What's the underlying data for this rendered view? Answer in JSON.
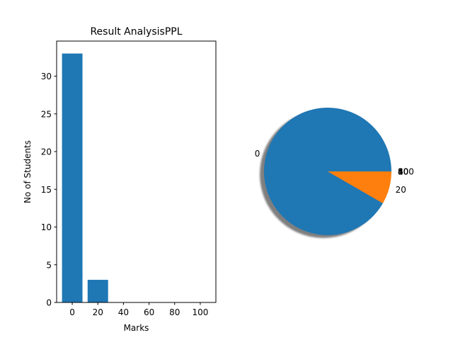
{
  "chart_data": [
    {
      "type": "bar",
      "title": "Result AnalysisPPL",
      "xlabel": "Marks",
      "ylabel": "No of Students",
      "categories": [
        0,
        20,
        40,
        60,
        80,
        100
      ],
      "values": [
        33,
        3,
        0,
        0,
        0,
        0
      ],
      "x_ticks": [
        "0",
        "20",
        "40",
        "60",
        "80",
        "100"
      ],
      "y_ticks": [
        "0",
        "5",
        "10",
        "15",
        "20",
        "25",
        "30"
      ],
      "ylim": [
        0,
        34.65
      ],
      "xlim": [
        -12.2,
        112.2
      ],
      "grid": false,
      "colors": {
        "bar": "#1f77b4"
      }
    },
    {
      "type": "pie",
      "labels": [
        "0",
        "20",
        "40",
        "60",
        "80",
        "100"
      ],
      "values": [
        33,
        3,
        0,
        0,
        0,
        0
      ],
      "shadow": true,
      "colors": [
        "#1f77b4",
        "#ff7f0e",
        "#2ca02c",
        "#d62728",
        "#9467bd",
        "#8c564b"
      ]
    }
  ]
}
